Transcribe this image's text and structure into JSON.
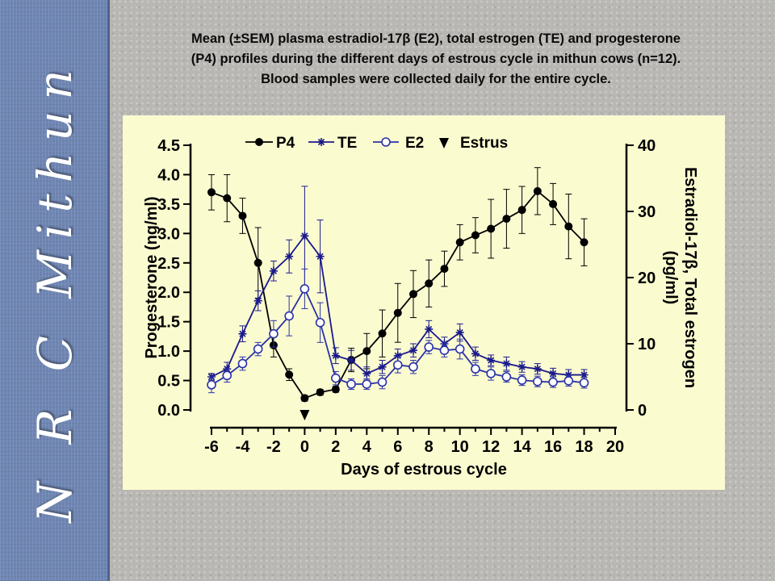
{
  "sidebar": {
    "brand": "N R C Mithun"
  },
  "caption": {
    "line1": "Mean (±SEM) plasma estradiol-17β (E2), total estrogen (TE) and progesterone",
    "line2": "(P4) profiles during the different days of estrous cycle in mithun cows (n=12).",
    "line3": "Blood samples were collected daily for the entire cycle."
  },
  "colors": {
    "sidebar": "#6f86b3",
    "panel": "#fbfbd0",
    "p4": "#000000",
    "te": "#1a1a8c",
    "e2": "#2a33a8"
  },
  "chart_data": {
    "type": "line",
    "xlabel": "Days of estrous cycle",
    "ylabel": "Progesterone (ng/ml)",
    "ylabel_right_1": "Estradiol-17β, Total estrogen",
    "ylabel_right_2": "(pg/ml)",
    "xlim": [
      -6,
      20
    ],
    "ylim": [
      0,
      4.5
    ],
    "ylim_right": [
      0,
      40
    ],
    "x_ticks": [
      -6,
      -4,
      -2,
      0,
      2,
      4,
      6,
      8,
      10,
      12,
      14,
      16,
      18,
      20
    ],
    "y_ticks": [
      "0.0",
      "0.5",
      "1.0",
      "1.5",
      "2.0",
      "2.5",
      "3.0",
      "3.5",
      "4.0",
      "4.5"
    ],
    "y_right_ticks": [
      "0",
      "10",
      "20",
      "30",
      "40"
    ],
    "legend": {
      "position": "top",
      "estrus_label": "Estrus",
      "estrus_day": 0
    },
    "series": [
      {
        "name": "P4",
        "axis": "left",
        "marker": "filled-circle",
        "x": [
          -6,
          -5,
          -4,
          -3,
          -2,
          -1,
          0,
          1,
          2,
          3,
          4,
          5,
          6,
          7,
          8,
          9,
          10,
          11,
          12,
          13,
          14,
          15,
          16,
          17,
          18
        ],
        "y": [
          3.7,
          3.6,
          3.3,
          2.5,
          1.1,
          0.6,
          0.2,
          0.3,
          0.35,
          0.85,
          1.0,
          1.3,
          1.65,
          1.97,
          2.15,
          2.4,
          2.85,
          2.97,
          3.08,
          3.25,
          3.4,
          3.72,
          3.5,
          3.12,
          2.85
        ],
        "err": [
          0.3,
          0.4,
          0.3,
          0.6,
          0.2,
          0.1,
          0.05,
          0.05,
          0.05,
          0.2,
          0.3,
          0.4,
          0.5,
          0.4,
          0.4,
          0.3,
          0.3,
          0.3,
          0.5,
          0.5,
          0.4,
          0.4,
          0.35,
          0.55,
          0.4
        ]
      },
      {
        "name": "TE",
        "axis": "right",
        "marker": "star",
        "x": [
          -6,
          -5,
          -4,
          -3,
          -2,
          -1,
          0,
          1,
          2,
          3,
          4,
          5,
          6,
          7,
          8,
          9,
          10,
          11,
          12,
          13,
          14,
          15,
          16,
          17,
          18
        ],
        "y": [
          5.0,
          6.2,
          11.5,
          16.5,
          21.0,
          23.2,
          26.3,
          23.2,
          8.2,
          7.5,
          5.5,
          6.5,
          8.2,
          9.0,
          12.2,
          10.0,
          11.7,
          8.5,
          7.5,
          7.0,
          6.5,
          6.2,
          5.5,
          5.3,
          5.3
        ],
        "err": [
          0.5,
          1.0,
          1.2,
          1.5,
          1.5,
          2.5,
          7.5,
          5.5,
          1.2,
          1.5,
          1.0,
          1.0,
          1.0,
          1.0,
          1.3,
          1.0,
          1.3,
          1.0,
          0.8,
          1.0,
          0.8,
          0.8,
          0.8,
          0.8,
          0.8
        ]
      },
      {
        "name": "E2",
        "axis": "right",
        "marker": "open-circle",
        "x": [
          -6,
          -5,
          -4,
          -3,
          -2,
          -1,
          0,
          1,
          2,
          3,
          4,
          5,
          6,
          7,
          8,
          9,
          10,
          11,
          12,
          13,
          14,
          15,
          16,
          17,
          18
        ],
        "y": [
          3.8,
          5.2,
          7.0,
          9.2,
          11.5,
          14.2,
          18.3,
          13.2,
          4.8,
          3.9,
          3.9,
          4.2,
          6.8,
          6.5,
          9.5,
          9.0,
          9.2,
          6.2,
          5.5,
          5.0,
          4.5,
          4.3,
          4.2,
          4.4,
          4.1
        ],
        "err": [
          1.2,
          1.0,
          1.0,
          1.0,
          2.0,
          3.0,
          3.0,
          3.0,
          1.0,
          0.8,
          0.8,
          1.0,
          1.2,
          1.0,
          1.0,
          1.0,
          1.5,
          1.0,
          1.0,
          0.8,
          0.8,
          0.8,
          0.8,
          0.8,
          0.8
        ]
      }
    ]
  }
}
